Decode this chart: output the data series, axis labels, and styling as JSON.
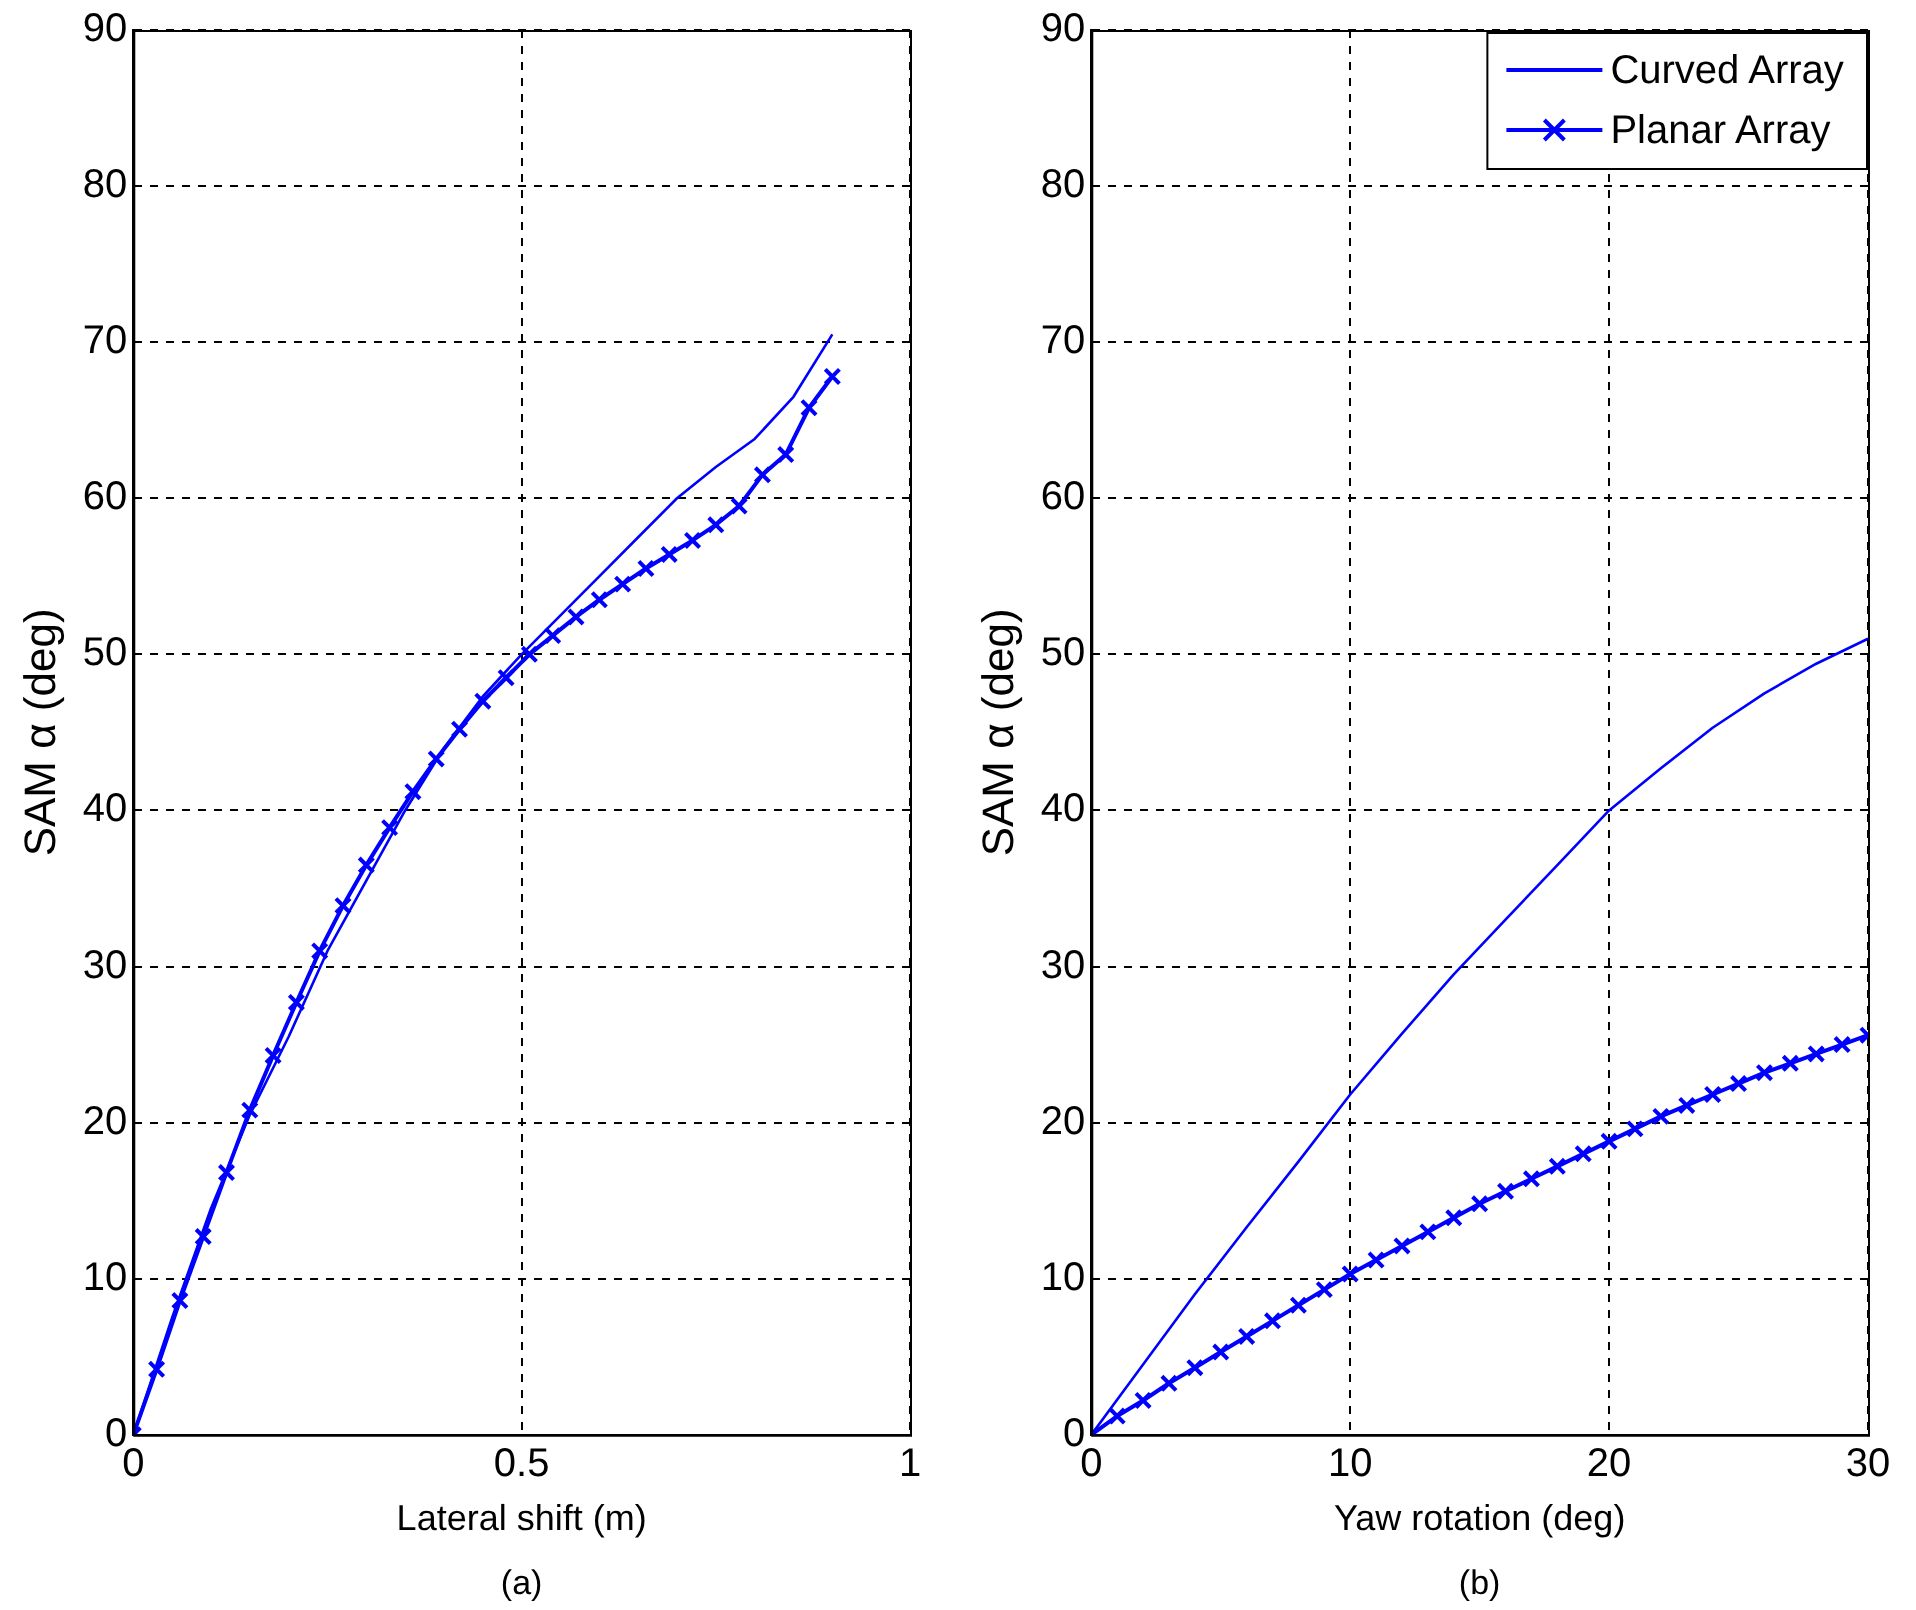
{
  "chart_data": [
    {
      "type": "line",
      "xlabel": "Lateral shift (m)",
      "ylabel": "SAM α (deg)",
      "annotations": [
        "(a)"
      ],
      "xlim": [
        0,
        1
      ],
      "xticks": [
        0,
        0.5,
        1
      ],
      "ylim": [
        0,
        90
      ],
      "yticks": [
        0,
        10,
        20,
        30,
        40,
        50,
        60,
        70,
        80,
        90
      ],
      "grid": true,
      "line_style": "solid",
      "legend": false,
      "series": [
        {
          "color": "#0000ff",
          "marker": "none",
          "x": [
            0,
            0.05,
            0.1,
            0.15,
            0.2,
            0.25,
            0.3,
            0.35,
            0.4,
            0.45,
            0.5,
            0.55,
            0.6,
            0.65,
            0.7,
            0.75,
            0.8,
            0.85,
            0.9
          ],
          "values": [
            0,
            7.5,
            14.5,
            20.5,
            25.5,
            31,
            35.5,
            40,
            44,
            47.3,
            50,
            52.5,
            55,
            57.5,
            60,
            62,
            63.8,
            66.5,
            70.5
          ]
        },
        {
          "color": "#0000ff",
          "marker": "cross",
          "x": [
            0,
            0.03,
            0.06,
            0.09,
            0.12,
            0.15,
            0.18,
            0.21,
            0.24,
            0.27,
            0.3,
            0.33,
            0.36,
            0.39,
            0.42,
            0.45,
            0.48,
            0.51,
            0.54,
            0.57,
            0.6,
            0.63,
            0.66,
            0.69,
            0.72,
            0.75,
            0.78,
            0.81,
            0.84,
            0.87,
            0.9
          ],
          "values": [
            0,
            4.2,
            8.6,
            12.7,
            16.8,
            20.8,
            24.3,
            27.7,
            31,
            33.9,
            36.5,
            38.9,
            41.2,
            43.3,
            45.2,
            47,
            48.5,
            50,
            51.2,
            52.4,
            53.5,
            54.5,
            55.5,
            56.4,
            57.3,
            58.3,
            59.5,
            61.5,
            62.8,
            65.8,
            67.8
          ]
        }
      ]
    },
    {
      "type": "line",
      "xlabel": "Yaw rotation (deg)",
      "ylabel": "SAM α (deg)",
      "annotations": [
        "(b)"
      ],
      "xlim": [
        0,
        30
      ],
      "xticks": [
        0,
        10,
        20,
        30
      ],
      "ylim": [
        0,
        90
      ],
      "yticks": [
        0,
        10,
        20,
        30,
        40,
        50,
        60,
        70,
        80,
        90
      ],
      "grid": true,
      "line_style": "solid",
      "legend": "top right",
      "series": [
        {
          "name": "Curved Array",
          "color": "#0000ff",
          "marker": "none",
          "x": [
            0,
            2,
            4,
            6,
            8,
            10,
            12,
            14,
            16,
            18,
            20,
            22,
            24,
            26,
            28,
            30
          ],
          "values": [
            0,
            4.5,
            9,
            13.3,
            17.5,
            21.8,
            25.7,
            29.5,
            33,
            36.5,
            40,
            42.7,
            45.3,
            47.5,
            49.4,
            51
          ]
        },
        {
          "name": "Planar Array",
          "color": "#0000ff",
          "marker": "cross",
          "x": [
            0,
            1,
            2,
            3,
            4,
            5,
            6,
            7,
            8,
            9,
            10,
            11,
            12,
            13,
            14,
            15,
            16,
            17,
            18,
            19,
            20,
            21,
            22,
            23,
            24,
            25,
            26,
            27,
            28,
            29,
            30
          ],
          "values": [
            0,
            1.2,
            2.2,
            3.3,
            4.3,
            5.3,
            6.3,
            7.3,
            8.3,
            9.3,
            10.3,
            11.2,
            12.1,
            13,
            13.9,
            14.8,
            15.6,
            16.4,
            17.2,
            18,
            18.8,
            19.6,
            20.4,
            21.1,
            21.8,
            22.5,
            23.2,
            23.8,
            24.4,
            25,
            25.6
          ]
        }
      ]
    }
  ]
}
